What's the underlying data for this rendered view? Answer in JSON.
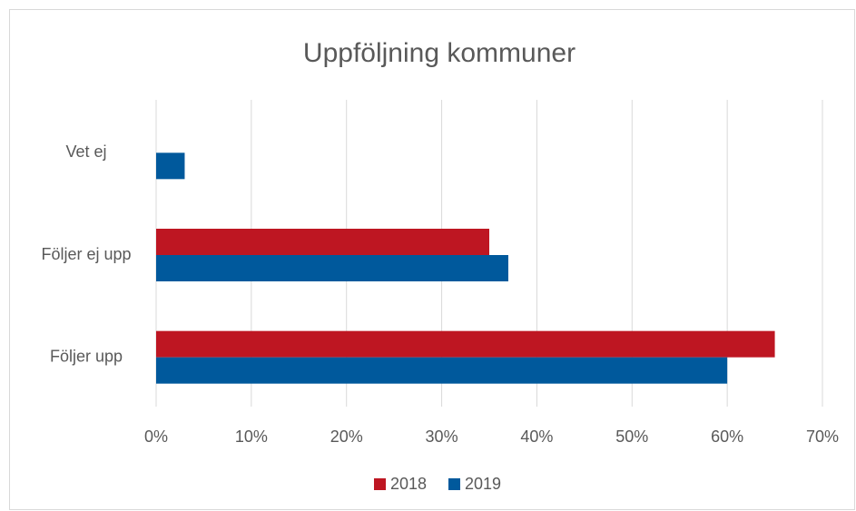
{
  "chart_data": {
    "type": "hbar",
    "title": "Uppföljning kommuner",
    "categories": [
      "Vet ej",
      "Följer ej upp",
      "Följer upp"
    ],
    "series": [
      {
        "name": "2018",
        "color": "#be1622",
        "values": [
          null,
          35,
          65
        ]
      },
      {
        "name": "2019",
        "color": "#00599c",
        "values": [
          3,
          37,
          60
        ]
      }
    ],
    "xlim": [
      0,
      70
    ],
    "xticks": [
      {
        "value": 0,
        "label": "0%"
      },
      {
        "value": 10,
        "label": "10%"
      },
      {
        "value": 20,
        "label": "20%"
      },
      {
        "value": 30,
        "label": "30%"
      },
      {
        "value": 40,
        "label": "40%"
      },
      {
        "value": 50,
        "label": "50%"
      },
      {
        "value": 60,
        "label": "60%"
      },
      {
        "value": 70,
        "label": "70%"
      }
    ],
    "grid": true,
    "legend": "bottom"
  }
}
